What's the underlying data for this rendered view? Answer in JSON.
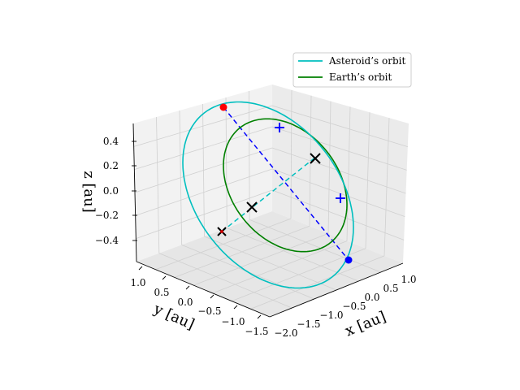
{
  "chart_data": {
    "type": "line",
    "projection": "3d",
    "title": "",
    "xlabel": "$x$ [au]",
    "ylabel": "$y$ [au]",
    "zlabel": "$z$ [au]",
    "xlabel_text": "x [au]",
    "ylabel_text": "y [au]",
    "zlabel_text": "z [au]",
    "xlim": [
      -2.0,
      1.0
    ],
    "ylim": [
      -1.5,
      1.0
    ],
    "zlim": [
      -0.5,
      0.5
    ],
    "xticks": [
      "−2.0",
      "−1.5",
      "−1.0",
      "−0.5",
      "0.0",
      "0.5",
      "1.0"
    ],
    "yticks": [
      "−1.5",
      "−1.0",
      "−0.5",
      "0.0",
      "0.5",
      "1.0"
    ],
    "zticks": [
      "−0.4",
      "−0.2",
      "0.0",
      "0.2",
      "0.4"
    ],
    "grid": true,
    "legend_location": "upper-right",
    "series": [
      {
        "name": "Asteroid’s orbit",
        "color": "#00bfbf",
        "shape": "ellipse",
        "semi_major_au": 1.3,
        "semi_minor_au": 0.9
      },
      {
        "name": "Earth’s orbit",
        "color": "#008000",
        "shape": "circle",
        "radius_au": 1.0
      }
    ],
    "markers": {
      "aphelion": {
        "color": "#ff0000",
        "symbol": "dot"
      },
      "perihelion": {
        "color": "#0000ff",
        "symbol": "dot"
      },
      "node_crossings": {
        "color": "#000000",
        "symbol": "x"
      },
      "foci_plus": {
        "color": "#0000ff",
        "symbol": "plus"
      }
    },
    "lines": [
      {
        "name": "apsides line",
        "color": "#0000ff",
        "style": "dashed"
      },
      {
        "name": "line of nodes",
        "color": "#00bfbf",
        "style": "dashed"
      }
    ]
  }
}
